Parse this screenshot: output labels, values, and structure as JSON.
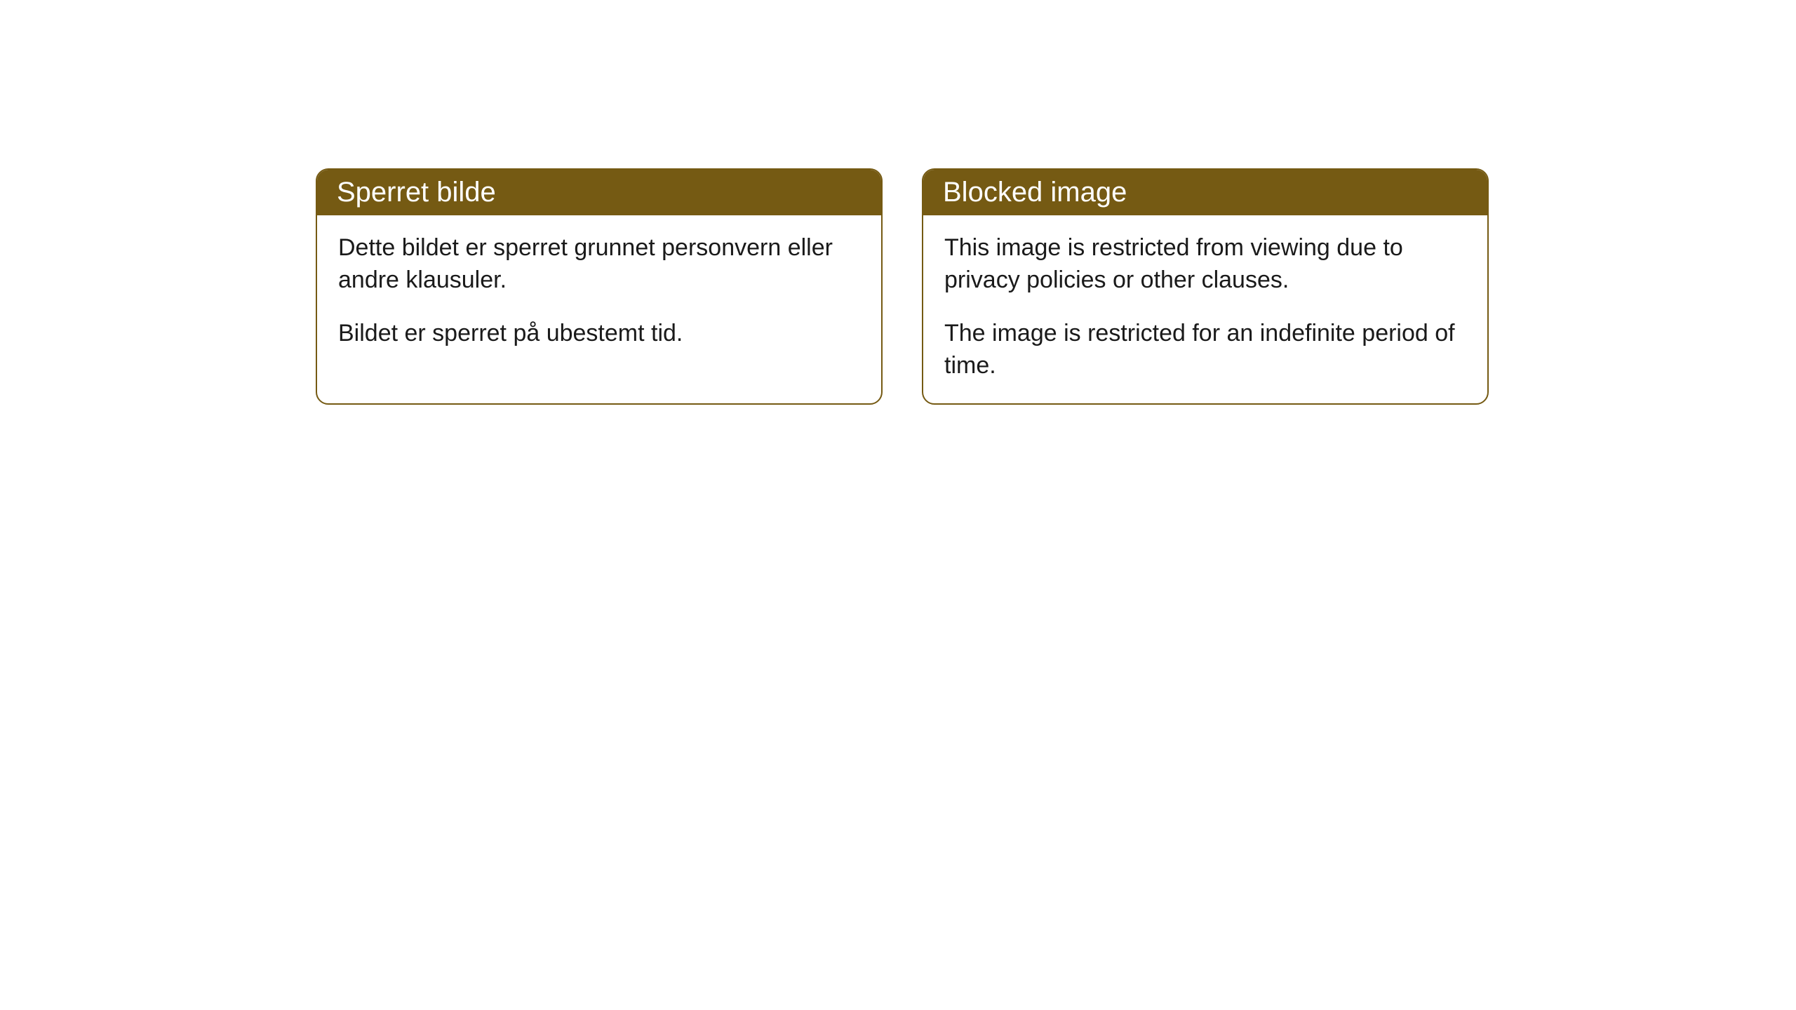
{
  "cards": [
    {
      "title": "Sperret bilde",
      "paragraph1": "Dette bildet er sperret grunnet personvern eller andre klausuler.",
      "paragraph2": "Bildet er sperret på ubestemt tid."
    },
    {
      "title": "Blocked image",
      "paragraph1": "This image is restricted from viewing due to privacy policies or other clauses.",
      "paragraph2": "The image is restricted for an indefinite period of time."
    }
  ],
  "style": {
    "header_bg": "#755a13",
    "header_text": "#ffffff",
    "border_color": "#755a13",
    "body_bg": "#ffffff",
    "body_text": "#1a1a1a",
    "border_radius": 18,
    "title_fontsize": 40,
    "body_fontsize": 34
  }
}
